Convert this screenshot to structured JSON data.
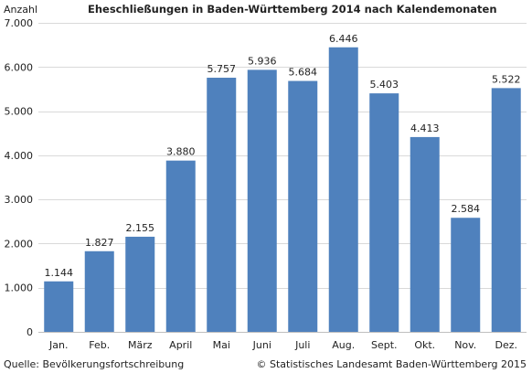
{
  "chart_data": {
    "type": "bar",
    "title": "Eheschließungen in Baden-Württemberg 2014 nach Kalendemonaten",
    "ylabel": "Anzahl",
    "xlabel": "",
    "categories": [
      "Jan.",
      "Feb.",
      "März",
      "April",
      "Mai",
      "Juni",
      "Juli",
      "Aug.",
      "Sept.",
      "Okt.",
      "Nov.",
      "Dez."
    ],
    "values": [
      1144,
      1827,
      2155,
      3880,
      5757,
      5936,
      5684,
      6446,
      5403,
      4413,
      2584,
      5522
    ],
    "value_labels": [
      "1.144",
      "1.827",
      "2.155",
      "3.880",
      "5.757",
      "5.936",
      "5.684",
      "6.446",
      "5.403",
      "4.413",
      "2.584",
      "5.522"
    ],
    "ylim": [
      0,
      7000
    ],
    "y_ticks": [
      0,
      1000,
      2000,
      3000,
      4000,
      5000,
      6000,
      7000
    ],
    "y_tick_labels": [
      "0",
      "1.000",
      "2.000",
      "3.000",
      "4.000",
      "5.000",
      "6.000",
      "7.000"
    ],
    "grid": true,
    "bar_color": "#4f81bd",
    "grid_color": "#d9d9d9"
  },
  "footer": {
    "source": "Quelle: Bevölkerungsfortschreibung",
    "copyright": "© Statistisches Landesamt Baden-Württemberg 2015"
  }
}
